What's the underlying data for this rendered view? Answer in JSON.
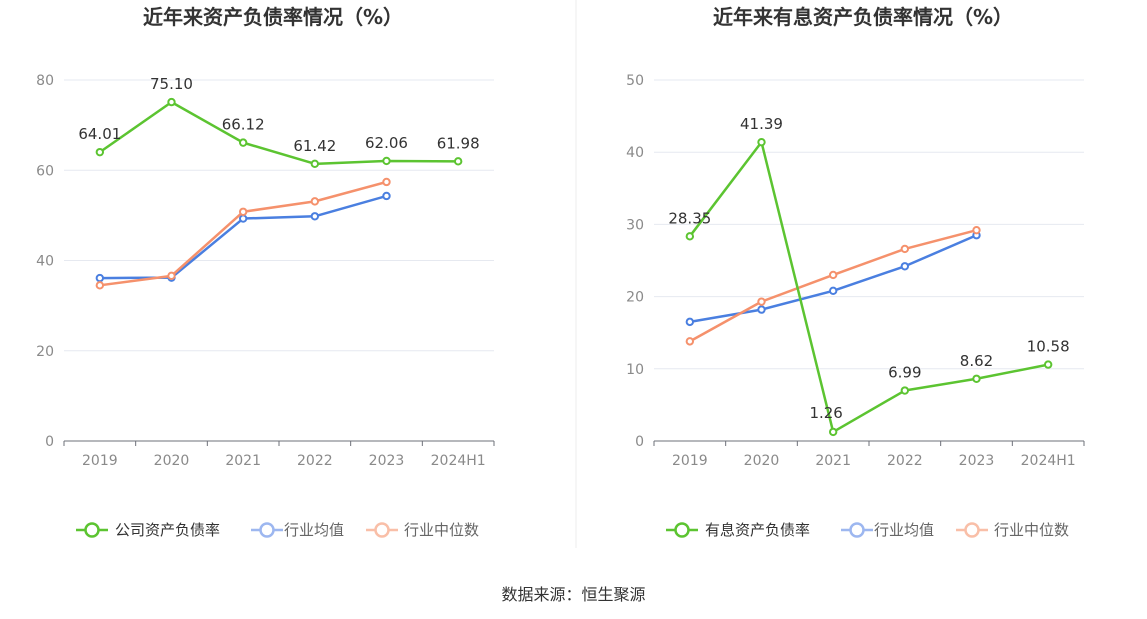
{
  "chart_data": [
    {
      "type": "line",
      "title": "近年来资产负债率情况（%）",
      "categories": [
        "2019",
        "2020",
        "2021",
        "2022",
        "2023",
        "2024H1"
      ],
      "ylim": [
        0,
        80
      ],
      "yticks": [
        0,
        20,
        40,
        60,
        80
      ],
      "grid": true,
      "legend_position": "bottom",
      "series": [
        {
          "name": "公司资产负债率",
          "color": "#5cc431",
          "values": [
            64.01,
            75.1,
            66.12,
            61.42,
            62.06,
            61.98
          ],
          "labels": [
            "64.01",
            "75.10",
            "66.12",
            "61.42",
            "62.06",
            "61.98"
          ]
        },
        {
          "name": "行业均值",
          "color": "#4a7fe0",
          "values": [
            36.1,
            36.2,
            49.3,
            49.8,
            54.3,
            null
          ]
        },
        {
          "name": "行业中位数",
          "color": "#f5916c",
          "values": [
            34.5,
            36.6,
            50.8,
            53.1,
            57.4,
            null
          ]
        }
      ]
    },
    {
      "type": "line",
      "title": "近年来有息资产负债率情况（%）",
      "categories": [
        "2019",
        "2020",
        "2021",
        "2022",
        "2023",
        "2024H1"
      ],
      "ylim": [
        0,
        50
      ],
      "yticks": [
        0,
        10,
        20,
        30,
        40,
        50
      ],
      "grid": true,
      "legend_position": "bottom",
      "series": [
        {
          "name": "有息资产负债率",
          "color": "#5cc431",
          "values": [
            28.35,
            41.39,
            1.26,
            6.99,
            8.62,
            10.58
          ],
          "labels": [
            "28.35",
            "41.39",
            "1.26",
            "6.99",
            "8.62",
            "10.58"
          ]
        },
        {
          "name": "行业均值",
          "color": "#4a7fe0",
          "values": [
            16.5,
            18.2,
            20.8,
            24.2,
            28.5,
            null
          ]
        },
        {
          "name": "行业中位数",
          "color": "#f5916c",
          "values": [
            13.8,
            19.3,
            23.0,
            26.6,
            29.2,
            null
          ]
        }
      ]
    }
  ],
  "source_text": "数据来源：恒生聚源"
}
